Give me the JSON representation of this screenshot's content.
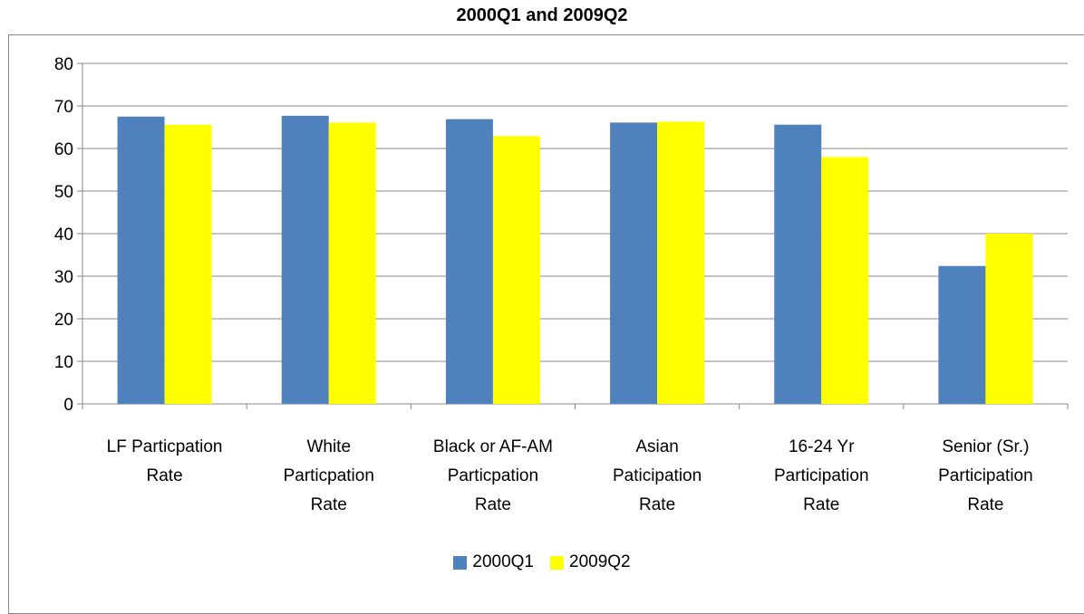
{
  "chart_data": {
    "type": "bar",
    "title": "2000Q1 and 2009Q2",
    "xlabel": "",
    "ylabel": "",
    "ylim": [
      0,
      80
    ],
    "yticks": [
      0,
      10,
      20,
      30,
      40,
      50,
      60,
      70,
      80
    ],
    "grid": true,
    "legend_position": "bottom",
    "categories": [
      [
        "LF Particpation",
        "Rate"
      ],
      [
        "White",
        "Particpation",
        "Rate"
      ],
      [
        "Black or AF-AM",
        "Particpation",
        "Rate"
      ],
      [
        "Asian",
        "Paticipation",
        "Rate"
      ],
      [
        "16-24 Yr",
        "Participation",
        "Rate"
      ],
      [
        "Senior (Sr.)",
        "Participation",
        "Rate"
      ]
    ],
    "series": [
      {
        "name": "2000Q1",
        "color": "#4F81BD",
        "values": [
          67.5,
          67.7,
          66.9,
          66.1,
          65.6,
          32.4
        ]
      },
      {
        "name": "2009Q2",
        "color": "#FFFF00",
        "values": [
          65.6,
          66.1,
          62.9,
          66.3,
          58.0,
          40.0
        ]
      }
    ]
  }
}
